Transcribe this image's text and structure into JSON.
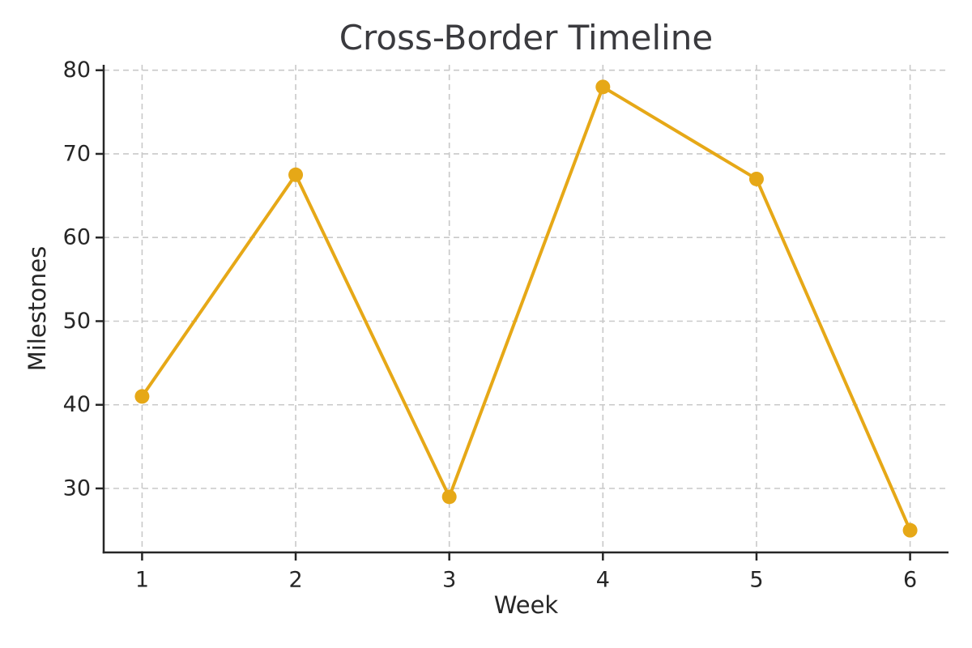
{
  "chart_data": {
    "type": "line",
    "title": "Cross-Border Timeline",
    "xlabel": "Week",
    "ylabel": "Milestones",
    "x": [
      1,
      2,
      3,
      4,
      5,
      6
    ],
    "series": [
      {
        "name": "Milestones",
        "values": [
          41,
          67.5,
          29,
          78,
          67,
          25
        ]
      }
    ],
    "xticks": [
      1,
      2,
      3,
      4,
      5,
      6
    ],
    "yticks": [
      30,
      40,
      50,
      60,
      70,
      80
    ],
    "xlim": [
      0.75,
      6.25
    ],
    "ylim": [
      22.35,
      80.65
    ],
    "grid": true,
    "grid_style": "dashed",
    "legend_position": "none",
    "colors": {
      "line": "#E6A817",
      "marker": "#E6A817",
      "grid": "#C9C9C9",
      "spine": "#262626",
      "tick_text": "#262626",
      "title_text": "#3A3A3E",
      "background": "#FFFFFF"
    },
    "marker_shape": "circle",
    "tick_font_size": 27
  }
}
